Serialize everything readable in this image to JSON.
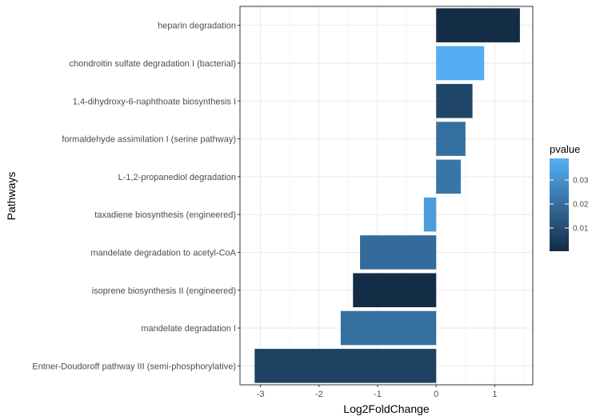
{
  "chart_data": {
    "type": "bar",
    "orientation": "horizontal",
    "xlabel": "Log2FoldChange",
    "ylabel": "Pathways",
    "xlim": [
      -3.35,
      1.65
    ],
    "x_ticks": [
      -3,
      -2,
      -1,
      0,
      1
    ],
    "grid": true,
    "legend": {
      "title": "pvalue",
      "placement": "right",
      "range": [
        0.0003,
        0.039
      ],
      "ticks": [
        {
          "value": 0.01,
          "label": "0.01"
        },
        {
          "value": 0.02,
          "label": "0.02"
        },
        {
          "value": 0.03,
          "label": "0.03"
        }
      ],
      "low_color": "#132B43",
      "high_color": "#56B1F7"
    },
    "categories": [
      "heparin degradation",
      "chondroitin sulfate degradation I (bacterial)",
      "1,4-dihydroxy-6-naphthoate biosynthesis I",
      "formaldehyde assimilation I (serine pathway)",
      "L-1,2-propanediol degradation",
      "taxadiene biosynthesis (engineered)",
      "mandelate degradation to acetyl-CoA",
      "isoprene biosynthesis II (engineered)",
      "mandelate degradation I",
      "Entner-Doudoroff pathway III (semi-phosphorylative)"
    ],
    "values": [
      1.43,
      0.82,
      0.62,
      0.5,
      0.42,
      -0.21,
      -1.3,
      -1.42,
      -1.63,
      -3.1
    ],
    "pvalues": [
      0.001,
      0.038,
      0.008,
      0.02,
      0.022,
      0.033,
      0.019,
      0.001,
      0.02,
      0.007
    ]
  }
}
